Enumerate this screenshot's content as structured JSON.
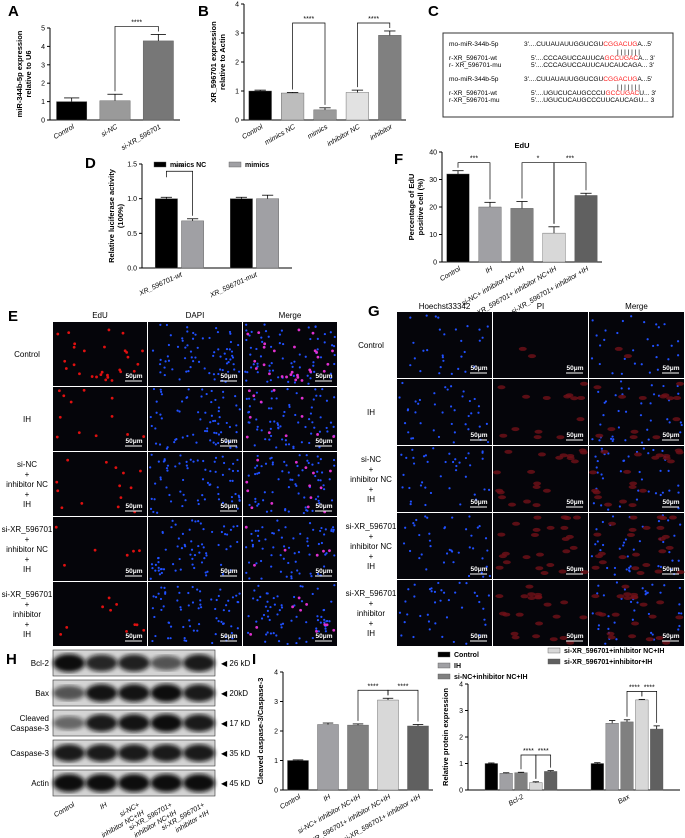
{
  "panels": {
    "A": "A",
    "B": "B",
    "C": "C",
    "D": "D",
    "E": "E",
    "F": "F",
    "G": "G",
    "H": "H",
    "I": "I"
  },
  "sequence_box": {
    "rows": [
      {
        "name": "mo-miR-344b-5p",
        "seq_prefix": "3'....CUUAUAUUGGUCGU",
        "seq_highlight": "CGGACUG",
        "seq_suffix": "A...5'"
      },
      {
        "name": "r-XR_596701-wt",
        "seq_prefix": "5'....CCCAGUCCAUUCA",
        "seq_highlight": "GCCUGAC",
        "seq_suffix": "A... 3'"
      },
      {
        "name": "r- XR_596701-mu",
        "seq_prefix": "5'....CCCAGUCCAUUCAUCAUCAGA... 3'",
        "seq_highlight": "",
        "seq_suffix": ""
      },
      {
        "name": "mo-miR-344b-5p",
        "seq_prefix": "3'....CUUAUAUUGGUCGU",
        "seq_highlight": "CGGACUG",
        "seq_suffix": "A...5'"
      },
      {
        "name": "r-XR_596701-wt",
        "seq_prefix": "5'....UGUCUCAUGCCCU",
        "seq_highlight": "GCCUGAC",
        "seq_suffix": "U... 3'"
      },
      {
        "name": "r-XR_596701-mu",
        "seq_prefix": "5'....UGUCUCAUGCCCUUCAUCAGU... 3",
        "seq_highlight": "",
        "seq_suffix": ""
      }
    ],
    "pairing": "| | | | | | |",
    "highlight_color": "#ff2020"
  },
  "edu_panel": {
    "columns": [
      "EdU",
      "DAPI",
      "Merge"
    ],
    "rows": [
      [
        "Control"
      ],
      [
        "IH"
      ],
      [
        "si-NC",
        "+",
        "inhibitor  NC",
        "+",
        "IH"
      ],
      [
        "si-XR_596701",
        "+",
        "inhibitor  NC",
        "+",
        "IH"
      ],
      [
        "si-XR_596701",
        "+",
        "inhibitor",
        "+",
        "IH"
      ]
    ],
    "scale_bar": "50μm"
  },
  "pi_panel": {
    "columns": [
      "Hoechst33342",
      "PI",
      "Merge"
    ],
    "rows": [
      [
        "Control"
      ],
      [
        "IH"
      ],
      [
        "si-NC",
        "+",
        "inhibitor  NC",
        "+",
        "IH"
      ],
      [
        "si-XR_596701",
        "+",
        "inhibitor  NC",
        "+",
        "IH"
      ],
      [
        "si-XR_596701",
        "+",
        "inhibitor",
        "+",
        "IH"
      ]
    ],
    "scale_bar": "50μm"
  },
  "western_blot": {
    "proteins": [
      {
        "name": [
          "Bcl-2"
        ],
        "size": "◀ 26 kD",
        "intensity": [
          1,
          0.8,
          0.85,
          0.45,
          0.9
        ]
      },
      {
        "name": [
          "Bax"
        ],
        "size": "◀  20kD",
        "intensity": [
          0.45,
          0.95,
          0.95,
          1,
          0.9
        ]
      },
      {
        "name": [
          "Cleaved",
          "Caspase-3"
        ],
        "size": "◀ 17 kD",
        "intensity": [
          0.3,
          0.9,
          0.95,
          1,
          0.9
        ]
      },
      {
        "name": [
          "Caspase-3"
        ],
        "size": "◀ 35 kD",
        "intensity": [
          0.9,
          0.9,
          0.9,
          0.9,
          0.9
        ]
      },
      {
        "name": [
          "Actin"
        ],
        "size": "◀ 45 kD",
        "intensity": [
          1,
          1,
          1,
          1,
          1
        ]
      }
    ],
    "lanes": [
      [
        "Control"
      ],
      [
        "IH"
      ],
      [
        "si-NC+",
        "inhibitor NC+IH"
      ],
      [
        "si-XR_596701+",
        "inhibitor NC+IH"
      ],
      [
        "si-XR_596701+",
        "inhibitor +IH"
      ]
    ]
  },
  "chart_data": [
    {
      "id": "A",
      "type": "bar",
      "categories": [
        "Control",
        "si-NC",
        "si-XR_596701"
      ],
      "values": [
        1.0,
        1.05,
        4.3
      ],
      "errors": [
        0.2,
        0.35,
        0.35
      ],
      "ylabel": [
        "miR-344b-5p expression",
        "relative to U6"
      ],
      "ylim": [
        0,
        5
      ],
      "yticks": [
        "0",
        "1",
        "2",
        "3",
        "4",
        "5"
      ],
      "colors": [
        "#000000",
        "#9a9a9a",
        "#777777"
      ],
      "significance": [
        {
          "from": 1,
          "to": 2,
          "label": "****"
        }
      ]
    },
    {
      "id": "B",
      "type": "bar",
      "categories": [
        "Control",
        "mimics NC",
        "mimics",
        "inhibitor NC",
        "inhibitor"
      ],
      "values": [
        1.0,
        0.93,
        0.35,
        0.95,
        2.92
      ],
      "errors": [
        0.03,
        0.02,
        0.07,
        0.08,
        0.15
      ],
      "ylabel": [
        "XR_596701 expression",
        "relative to Actin"
      ],
      "ylim": [
        0,
        4
      ],
      "yticks": [
        "0",
        "1",
        "2",
        "3",
        "4"
      ],
      "colors": [
        "#000000",
        "#bdbdbd",
        "#9a9a9a",
        "#e2e2e2",
        "#808080"
      ],
      "significance": [
        {
          "from": 1,
          "to": 2,
          "label": "****"
        },
        {
          "from": 3,
          "to": 4,
          "label": "****"
        }
      ]
    },
    {
      "id": "D",
      "type": "bar",
      "categories": [
        "XR_596701-wt",
        "XR_596701-mut"
      ],
      "series": [
        {
          "name": "mimics NC",
          "values": [
            1.0,
            1.0
          ],
          "errors": [
            0.02,
            0.02
          ],
          "color": "#000000"
        },
        {
          "name": "mimics",
          "values": [
            0.68,
            1.0
          ],
          "errors": [
            0.03,
            0.05
          ],
          "color": "#a0a0a4"
        }
      ],
      "ylabel": [
        "Relative luciferase activity",
        "(100%)"
      ],
      "ylim": [
        0,
        1.5
      ],
      "yticks": [
        "0.0",
        "0.5",
        "1.0",
        "1.5"
      ],
      "legend": "top",
      "significance": [
        {
          "group": 0,
          "label": "***"
        }
      ]
    },
    {
      "id": "F",
      "type": "bar",
      "title": "EdU",
      "categories": [
        "Control",
        "IH",
        "si-NC+ inhibitor NC+IH",
        "si-XR_596701+ inhibitor NC+IH",
        "si-XR_596701+ inhibitor +IH"
      ],
      "values": [
        32,
        20,
        19.5,
        10.5,
        24.2
      ],
      "errors": [
        1.2,
        1.7,
        2.5,
        2.3,
        0.8
      ],
      "ylabel": [
        "Percentage of EdU",
        "positive cell (%)"
      ],
      "ylim": [
        0,
        40
      ],
      "yticks": [
        "0",
        "10",
        "20",
        "30",
        "40"
      ],
      "colors": [
        "#000000",
        "#a0a0a4",
        "#808080",
        "#d8d8d8",
        "#606060"
      ],
      "significance": [
        {
          "from": 0,
          "to": 1,
          "label": "***"
        },
        {
          "from": 2,
          "to": 3,
          "label": "*"
        },
        {
          "from": 3,
          "to": 4,
          "label": "***"
        }
      ]
    },
    {
      "id": "I-left",
      "type": "bar",
      "categories": [
        "Control",
        "IH",
        "si-NC+ inhibitor NC+IH",
        "si-XR_596701+ inhibitor NC+IH",
        "si-XR_596701+ inhibitor +IH"
      ],
      "values": [
        1.0,
        2.22,
        2.2,
        3.05,
        2.17
      ],
      "errors": [
        0.02,
        0.05,
        0.04,
        0.06,
        0.05
      ],
      "ylabel": [
        "Cleaved caspase-3/Caspase-3"
      ],
      "ylim": [
        0,
        4
      ],
      "yticks": [
        "0",
        "1",
        "2",
        "3",
        "4"
      ],
      "colors": [
        "#000000",
        "#a0a0a4",
        "#808080",
        "#d8d8d8",
        "#606060"
      ],
      "significance": [
        {
          "from": 2,
          "to": 3,
          "label": "****"
        },
        {
          "from": 3,
          "to": 4,
          "label": "****"
        }
      ]
    },
    {
      "id": "I-right",
      "type": "bar",
      "categories": [
        "Bcl-2",
        "Bax"
      ],
      "series": [
        {
          "name": "Control",
          "values": [
            1.0,
            1.0
          ],
          "errors": [
            0.02,
            0.03
          ],
          "color": "#000000"
        },
        {
          "name": "IH",
          "values": [
            0.63,
            2.52
          ],
          "errors": [
            0.02,
            0.1
          ],
          "color": "#a0a0a4"
        },
        {
          "name": "si-NC+inhibitor NC+IH",
          "values": [
            0.65,
            2.57
          ],
          "errors": [
            0.02,
            0.08
          ],
          "color": "#808080"
        },
        {
          "name": "si-XR_596701+inhibitor NC+IH",
          "values": [
            0.28,
            3.4
          ],
          "errors": [
            0.03,
            0.02
          ],
          "color": "#d8d8d8"
        },
        {
          "name": "si-XR_596701+inhibitor+IH",
          "values": [
            0.7,
            2.3
          ],
          "errors": [
            0.03,
            0.12
          ],
          "color": "#606060"
        }
      ],
      "ylabel": [
        "Relative protein expression"
      ],
      "ylim": [
        0,
        4
      ],
      "yticks": [
        "0",
        "1",
        "2",
        "3",
        "4"
      ],
      "legend": "top",
      "significance": [
        {
          "group": 0,
          "from": 2,
          "to": 3,
          "label": "****"
        },
        {
          "group": 0,
          "from": 3,
          "to": 4,
          "label": "****"
        },
        {
          "group": 1,
          "from": 2,
          "to": 3,
          "label": "****"
        },
        {
          "group": 1,
          "from": 3,
          "to": 4,
          "label": "****"
        }
      ]
    }
  ]
}
